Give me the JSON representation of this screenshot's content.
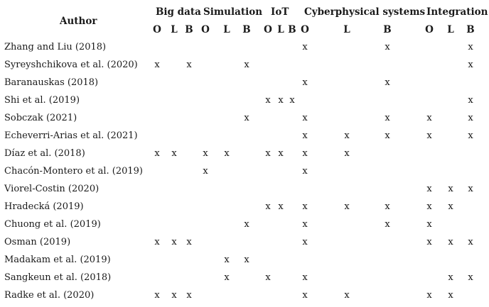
{
  "table": {
    "author_header": "Author",
    "groups": [
      {
        "label": "Big data",
        "subs": [
          "O",
          "L",
          "B"
        ]
      },
      {
        "label": "Simulation",
        "subs": [
          "O",
          "L",
          "B"
        ]
      },
      {
        "label": "IoT",
        "subs": [
          "O",
          "L",
          "B"
        ]
      },
      {
        "label": "Cyberphysical systems",
        "subs": [
          "O",
          "L",
          "B"
        ]
      },
      {
        "label": "Integration",
        "subs": [
          "O",
          "L",
          "B"
        ]
      }
    ],
    "rows": [
      {
        "author": "Zhang and Liu (2018)",
        "cells": [
          "",
          "",
          "",
          "",
          "",
          "",
          "",
          "",
          "",
          "x",
          "",
          "x",
          "",
          "",
          "x"
        ]
      },
      {
        "author": "Syreyshchikova et al. (2020)",
        "cells": [
          "x",
          "",
          "x",
          "",
          "",
          "x",
          "",
          "",
          "",
          "",
          "",
          "",
          "",
          "",
          "x"
        ]
      },
      {
        "author": "Baranauskas (2018)",
        "cells": [
          "",
          "",
          "",
          "",
          "",
          "",
          "",
          "",
          "",
          "x",
          "",
          "x",
          "",
          "",
          ""
        ]
      },
      {
        "author": "Shi et al. (2019)",
        "cells": [
          "",
          "",
          "",
          "",
          "",
          "",
          "x",
          "x",
          "x",
          "",
          "",
          "",
          "",
          "",
          "x"
        ]
      },
      {
        "author": "Sobczak (2021)",
        "cells": [
          "",
          "",
          "",
          "",
          "",
          "x",
          "",
          "",
          "",
          "x",
          "",
          "x",
          "x",
          "",
          "x"
        ]
      },
      {
        "author": "Echeverri-Arias et al. (2021)",
        "cells": [
          "",
          "",
          "",
          "",
          "",
          "",
          "",
          "",
          "",
          "x",
          "x",
          "x",
          "x",
          "",
          "x"
        ]
      },
      {
        "author": "Díaz et al. (2018)",
        "cells": [
          "x",
          "x",
          "",
          "x",
          "x",
          "",
          "x",
          "x",
          "",
          "x",
          "x",
          "",
          "",
          "",
          ""
        ]
      },
      {
        "author": "Chacón-Montero et al. (2019)",
        "cells": [
          "",
          "",
          "",
          "x",
          "",
          "",
          "",
          "",
          "",
          "x",
          "",
          "",
          "",
          "",
          ""
        ]
      },
      {
        "author": "Viorel-Costin (2020)",
        "cells": [
          "",
          "",
          "",
          "",
          "",
          "",
          "",
          "",
          "",
          "",
          "",
          "",
          "x",
          "x",
          "x"
        ]
      },
      {
        "author": "Hradecká (2019)",
        "cells": [
          "",
          "",
          "",
          "",
          "",
          "",
          "x",
          "x",
          "",
          "x",
          "x",
          "x",
          "x",
          "x",
          ""
        ]
      },
      {
        "author": "Chuong et al. (2019)",
        "cells": [
          "",
          "",
          "",
          "",
          "",
          "x",
          "",
          "",
          "",
          "x",
          "",
          "x",
          "x",
          "",
          ""
        ]
      },
      {
        "author": "Osman (2019)",
        "cells": [
          "x",
          "x",
          "x",
          "",
          "",
          "",
          "",
          "",
          "",
          "x",
          "",
          "",
          "x",
          "x",
          "x"
        ]
      },
      {
        "author": "Madakam et al. (2019)",
        "cells": [
          "",
          "",
          "",
          "",
          "x",
          "x",
          "",
          "",
          "",
          "",
          "",
          "",
          "",
          "",
          ""
        ]
      },
      {
        "author": "Sangkeun et al. (2018)",
        "cells": [
          "",
          "",
          "",
          "",
          "x",
          "",
          "x",
          "",
          "",
          "x",
          "",
          "",
          "",
          "x",
          "x"
        ]
      },
      {
        "author": "Radke et al. (2020)",
        "cells": [
          "x",
          "x",
          "x",
          "",
          "",
          "",
          "",
          "",
          "",
          "x",
          "x",
          "",
          "x",
          "x",
          ""
        ]
      }
    ]
  }
}
